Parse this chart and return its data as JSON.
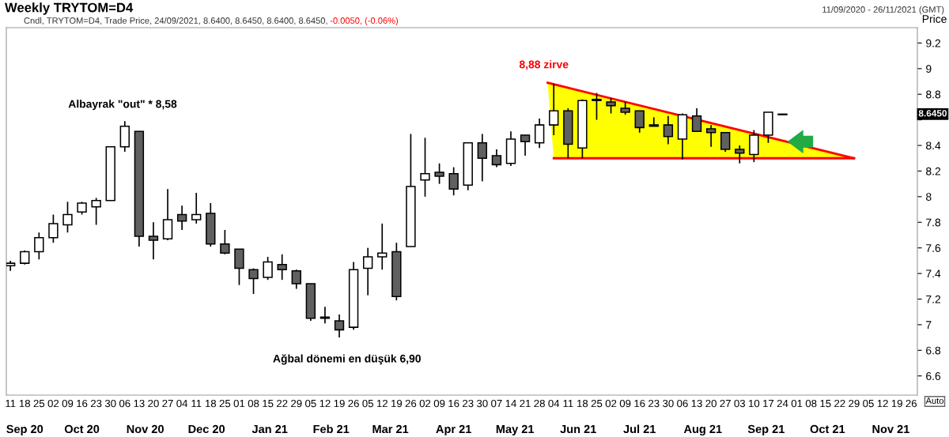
{
  "chart_data": {
    "type": "candlestick",
    "title": "Weekly TRYTOM=D4",
    "subtitle": "Cndl, TRYTOM=D4, Trade Price, 24/09/2021, 8.6400, 8.6450, 8.6400, 8.6450, ",
    "ylabel": "Price",
    "x": [
      "2020-09-11",
      "2020-09-18",
      "2020-09-25",
      "2020-10-02",
      "2020-10-09",
      "2020-10-16",
      "2020-10-23",
      "2020-10-30",
      "2020-11-06",
      "2020-11-13",
      "2020-11-20",
      "2020-11-27",
      "2020-12-04",
      "2020-12-11",
      "2020-12-18",
      "2020-12-25",
      "2021-01-01",
      "2021-01-08",
      "2021-01-15",
      "2021-01-22",
      "2021-01-29",
      "2021-02-05",
      "2021-02-12",
      "2021-02-19",
      "2021-02-26",
      "2021-03-05",
      "2021-03-12",
      "2021-03-19",
      "2021-03-26",
      "2021-04-02",
      "2021-04-09",
      "2021-04-16",
      "2021-04-23",
      "2021-04-30",
      "2021-05-07",
      "2021-05-14",
      "2021-05-21",
      "2021-05-28",
      "2021-06-04",
      "2021-06-11",
      "2021-06-18",
      "2021-06-25",
      "2021-07-02",
      "2021-07-09",
      "2021-07-16",
      "2021-07-23",
      "2021-07-30",
      "2021-08-06",
      "2021-08-13",
      "2021-08-20",
      "2021-08-27",
      "2021-09-03",
      "2021-09-10",
      "2021-09-17",
      "2021-09-24"
    ],
    "ohlc": [
      [
        7.46,
        7.5,
        7.42,
        7.48
      ],
      [
        7.48,
        7.58,
        7.47,
        7.57
      ],
      [
        7.57,
        7.72,
        7.51,
        7.68
      ],
      [
        7.68,
        7.86,
        7.64,
        7.79
      ],
      [
        7.78,
        7.96,
        7.72,
        7.86
      ],
      [
        7.88,
        7.96,
        7.86,
        7.95
      ],
      [
        7.92,
        7.99,
        7.78,
        7.97
      ],
      [
        7.97,
        8.39,
        7.97,
        8.39
      ],
      [
        8.39,
        8.59,
        8.35,
        8.55
      ],
      [
        8.51,
        8.51,
        7.61,
        7.69
      ],
      [
        7.69,
        7.8,
        7.51,
        7.66
      ],
      [
        7.67,
        8.06,
        7.66,
        7.82
      ],
      [
        7.86,
        7.93,
        7.74,
        7.81
      ],
      [
        7.82,
        8.03,
        7.79,
        7.86
      ],
      [
        7.87,
        7.95,
        7.61,
        7.63
      ],
      [
        7.63,
        7.74,
        7.55,
        7.56
      ],
      [
        7.59,
        7.59,
        7.31,
        7.44
      ],
      [
        7.43,
        7.44,
        7.24,
        7.36
      ],
      [
        7.37,
        7.53,
        7.35,
        7.49
      ],
      [
        7.47,
        7.55,
        7.35,
        7.43
      ],
      [
        7.42,
        7.43,
        7.28,
        7.32
      ],
      [
        7.32,
        7.32,
        7.03,
        7.05
      ],
      [
        7.06,
        7.14,
        7.01,
        7.05
      ],
      [
        7.03,
        7.08,
        6.9,
        6.96
      ],
      [
        6.98,
        7.49,
        6.96,
        7.43
      ],
      [
        7.44,
        7.6,
        7.23,
        7.53
      ],
      [
        7.53,
        7.79,
        7.43,
        7.56
      ],
      [
        7.57,
        7.64,
        7.19,
        7.22
      ],
      [
        7.61,
        8.49,
        7.61,
        8.08
      ],
      [
        8.13,
        8.46,
        8.0,
        8.18
      ],
      [
        8.19,
        8.26,
        8.1,
        8.16
      ],
      [
        8.18,
        8.23,
        8.01,
        8.06
      ],
      [
        8.09,
        8.42,
        8.05,
        8.42
      ],
      [
        8.42,
        8.49,
        8.12,
        8.3
      ],
      [
        8.32,
        8.37,
        8.23,
        8.25
      ],
      [
        8.26,
        8.51,
        8.24,
        8.45
      ],
      [
        8.48,
        8.48,
        8.32,
        8.43
      ],
      [
        8.42,
        8.61,
        8.38,
        8.56
      ],
      [
        8.56,
        8.88,
        8.48,
        8.67
      ],
      [
        8.67,
        8.69,
        8.3,
        8.41
      ],
      [
        8.38,
        8.76,
        8.3,
        8.75
      ],
      [
        8.75,
        8.81,
        8.6,
        8.76
      ],
      [
        8.74,
        8.77,
        8.65,
        8.71
      ],
      [
        8.69,
        8.74,
        8.64,
        8.66
      ],
      [
        8.67,
        8.67,
        8.5,
        8.54
      ],
      [
        8.55,
        8.62,
        8.55,
        8.56
      ],
      [
        8.56,
        8.63,
        8.41,
        8.47
      ],
      [
        8.45,
        8.65,
        8.29,
        8.64
      ],
      [
        8.63,
        8.69,
        8.51,
        8.51
      ],
      [
        8.53,
        8.56,
        8.39,
        8.5
      ],
      [
        8.5,
        8.5,
        8.35,
        8.37
      ],
      [
        8.37,
        8.4,
        8.26,
        8.34
      ],
      [
        8.33,
        8.52,
        8.27,
        8.48
      ],
      [
        8.48,
        8.66,
        8.42,
        8.66
      ],
      [
        8.64,
        8.645,
        8.64,
        8.645
      ]
    ],
    "colors": [
      "#ffffff",
      "#ffffff",
      "#ffffff",
      "#ffffff",
      "#ffffff",
      "#ffffff",
      "#ffffff",
      "#ffffff",
      "#ffffff",
      "#606060",
      "#606060",
      "#ffffff",
      "#606060",
      "#ffffff",
      "#606060",
      "#606060",
      "#606060",
      "#606060",
      "#ffffff",
      "#606060",
      "#606060",
      "#606060",
      "#606060",
      "#606060",
      "#ffffff",
      "#ffffff",
      "#ffffff",
      "#606060",
      "#ffffff",
      "#ffffff",
      "#606060",
      "#606060",
      "#ffffff",
      "#606060",
      "#606060",
      "#ffffff",
      "#606060",
      "#ffffff",
      "#ffffff",
      "#606060",
      "#ffffff",
      "#ffffff",
      "#606060",
      "#606060",
      "#606060",
      "#ffffff",
      "#606060",
      "#ffffff",
      "#606060",
      "#606060",
      "#606060",
      "#606060",
      "#ffffff",
      "#ffffff",
      "#ffffff"
    ],
    "series": [
      {
        "type": "line",
        "color": "#ff0000",
        "x": [
          "2021-06-01",
          "2021-10-29"
        ],
        "values": [
          8.89,
          8.3
        ]
      },
      {
        "type": "line",
        "color": "#ff0000",
        "x": [
          "2021-06-04",
          "2021-10-29"
        ],
        "values": [
          8.3,
          8.3
        ]
      }
    ],
    "annotations": [
      {
        "text": "8,88 zirve",
        "x": "2021-06-04",
        "y": 8.88
      },
      {
        "text": "Albayrak \"out\" * 8,58",
        "x": "2020-11-06",
        "y": 8.58
      },
      {
        "text": "Ağbal dönemi en düşük 6,90",
        "x": "2021-02-19",
        "y": 6.9
      },
      "8.6450",
      "-0.0050, (-0.06%)",
      "11/09/2020 - 26/11/2021 (GMT)",
      "Auto"
    ],
    "xlim": [
      "2020-09-09",
      "2021-11-29"
    ],
    "x2lim": [
      "2020-09-09",
      "2021-11-29"
    ],
    "xticks": [
      {
        "value": "2020-09-11",
        "label": "11"
      },
      {
        "value": "2020-09-18",
        "label": "18"
      },
      {
        "value": "2020-09-25",
        "label": "25"
      },
      {
        "value": "2020-10-02",
        "label": "02"
      },
      {
        "value": "2020-10-09",
        "label": "09"
      },
      {
        "value": "2020-10-16",
        "label": "16"
      },
      {
        "value": "2020-10-23",
        "label": "23"
      },
      {
        "value": "2020-10-30",
        "label": "30"
      },
      {
        "value": "2020-11-06",
        "label": "06"
      },
      {
        "value": "2020-11-13",
        "label": "13"
      },
      {
        "value": "2020-11-20",
        "label": "20"
      },
      {
        "value": "2020-11-27",
        "label": "27"
      },
      {
        "value": "2020-12-04",
        "label": "04"
      },
      {
        "value": "2020-12-11",
        "label": "11"
      },
      {
        "value": "2020-12-18",
        "label": "18"
      },
      {
        "value": "2020-12-25",
        "label": "25"
      },
      {
        "value": "2021-01-01",
        "label": "01"
      },
      {
        "value": "2021-01-08",
        "label": "08"
      },
      {
        "value": "2021-01-15",
        "label": "15"
      },
      {
        "value": "2021-01-22",
        "label": "22"
      },
      {
        "value": "2021-01-29",
        "label": "29"
      },
      {
        "value": "2021-02-05",
        "label": "05"
      },
      {
        "value": "2021-02-12",
        "label": "12"
      },
      {
        "value": "2021-02-19",
        "label": "19"
      },
      {
        "value": "2021-02-26",
        "label": "26"
      },
      {
        "value": "2021-03-05",
        "label": "05"
      },
      {
        "value": "2021-03-12",
        "label": "12"
      },
      {
        "value": "2021-03-19",
        "label": "19"
      },
      {
        "value": "2021-03-26",
        "label": "26"
      },
      {
        "value": "2021-04-02",
        "label": "02"
      },
      {
        "value": "2021-04-09",
        "label": "09"
      },
      {
        "value": "2021-04-16",
        "label": "16"
      },
      {
        "value": "2021-04-23",
        "label": "23"
      },
      {
        "value": "2021-04-30",
        "label": "30"
      },
      {
        "value": "2021-05-07",
        "label": "07"
      },
      {
        "value": "2021-05-14",
        "label": "14"
      },
      {
        "value": "2021-05-21",
        "label": "21"
      },
      {
        "value": "2021-05-28",
        "label": "28"
      },
      {
        "value": "2021-06-04",
        "label": "04"
      },
      {
        "value": "2021-06-11",
        "label": "11"
      },
      {
        "value": "2021-06-18",
        "label": "18"
      },
      {
        "value": "2021-06-25",
        "label": "25"
      },
      {
        "value": "2021-07-02",
        "label": "02"
      },
      {
        "value": "2021-07-09",
        "label": "09"
      },
      {
        "value": "2021-07-16",
        "label": "16"
      },
      {
        "value": "2021-07-23",
        "label": "23"
      },
      {
        "value": "2021-07-30",
        "label": "30"
      },
      {
        "value": "2021-08-06",
        "label": "06"
      },
      {
        "value": "2021-08-13",
        "label": "13"
      },
      {
        "value": "2021-08-20",
        "label": "20"
      },
      {
        "value": "2021-08-27",
        "label": "27"
      },
      {
        "value": "2021-09-03",
        "label": "03"
      },
      {
        "value": "2021-09-10",
        "label": "10"
      },
      {
        "value": "2021-09-17",
        "label": "17"
      },
      {
        "value": "2021-09-24",
        "label": "24"
      },
      {
        "value": "2021-10-01",
        "label": "01"
      },
      {
        "value": "2021-10-08",
        "label": "08"
      },
      {
        "value": "2021-10-15",
        "label": "15"
      },
      {
        "value": "2021-10-22",
        "label": "22"
      },
      {
        "value": "2021-10-29",
        "label": "29"
      },
      {
        "value": "2021-11-05",
        "label": "05"
      },
      {
        "value": "2021-11-12",
        "label": "12"
      },
      {
        "value": "2021-11-19",
        "label": "19"
      },
      {
        "value": "2021-11-26",
        "label": "26"
      }
    ],
    "x2ticks": [
      {
        "value": "2020-09-18",
        "label": "Sep 20"
      },
      {
        "value": "2020-10-16",
        "label": "Oct 20"
      },
      {
        "value": "2020-11-16",
        "label": "Nov 20"
      },
      {
        "value": "2020-12-16",
        "label": "Dec 20"
      },
      {
        "value": "2021-01-16",
        "label": "Jan 21"
      },
      {
        "value": "2021-02-15",
        "label": "Feb 21"
      },
      {
        "value": "2021-03-16",
        "label": "Mar 21"
      },
      {
        "value": "2021-04-16",
        "label": "Apr 21"
      },
      {
        "value": "2021-05-16",
        "label": "May 21"
      },
      {
        "value": "2021-06-16",
        "label": "Jun 21"
      },
      {
        "value": "2021-07-16",
        "label": "Jul 21"
      },
      {
        "value": "2021-08-16",
        "label": "Aug 21"
      },
      {
        "value": "2021-09-16",
        "label": "Sep 21"
      },
      {
        "value": "2021-10-16",
        "label": "Oct 21"
      },
      {
        "value": "2021-11-16",
        "label": "Nov 21"
      }
    ],
    "ylim": [
      6.45,
      9.32
    ],
    "yticks": [
      6.6,
      6.8,
      7,
      7.2,
      7.4,
      7.6,
      7.8,
      8,
      8.2,
      8.4,
      {
        "value": 8.6,
        "label": null
      },
      8.8,
      9,
      9.2
    ]
  }
}
